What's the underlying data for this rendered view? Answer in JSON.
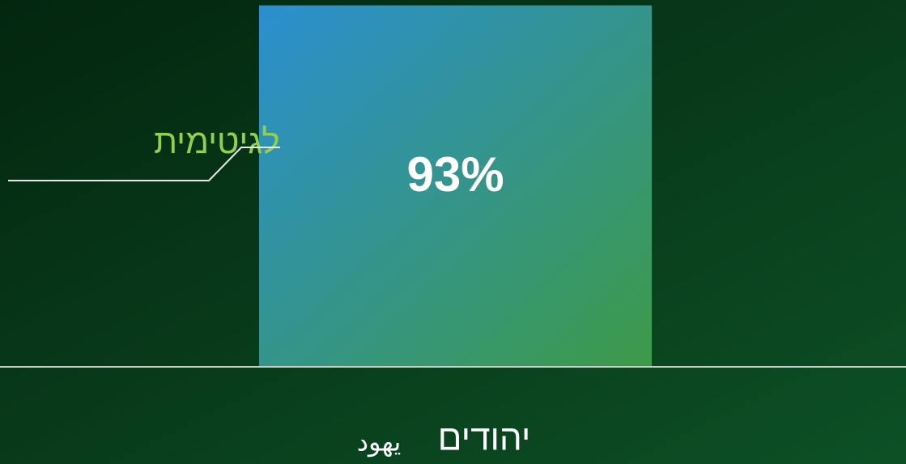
{
  "chart_data": {
    "type": "bar",
    "categories": [
      "יהודים"
    ],
    "category_translations": [
      "يهود"
    ],
    "series": [
      {
        "name": "לגיטימית",
        "gradient": [
          "#2b8fd0",
          "#3d9a48"
        ],
        "values": [
          93
        ],
        "value_labels": [
          "93%"
        ]
      }
    ],
    "ylim": [
      0,
      100
    ]
  }
}
